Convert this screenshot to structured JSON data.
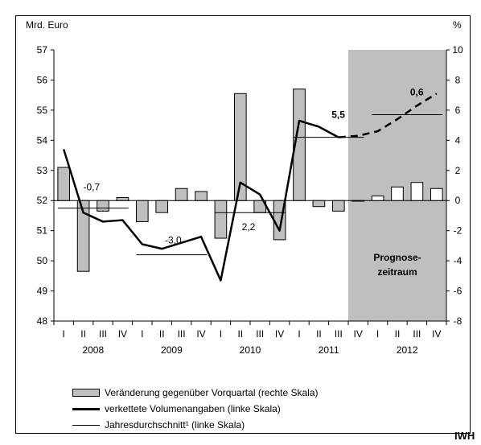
{
  "chart_data": {
    "type": "bar+line",
    "left_axis_unit": "Mrd. Euro",
    "right_axis_unit": "%",
    "left_ylim": [
      48,
      57
    ],
    "right_ylim": [
      -8,
      10
    ],
    "left_ticks": [
      "57",
      "56",
      "55",
      "54",
      "53",
      "52",
      "51",
      "50",
      "49",
      "48"
    ],
    "right_ticks": [
      "10",
      "8",
      "6",
      "4",
      "2",
      "0",
      "-2",
      "-4",
      "-6",
      "-8"
    ],
    "quarters": [
      "I",
      "II",
      "III",
      "IV",
      "I",
      "II",
      "III",
      "IV",
      "I",
      "II",
      "III",
      "IV",
      "I",
      "II",
      "III",
      "IV",
      "I",
      "II",
      "III",
      "IV"
    ],
    "years": [
      "2008",
      "2009",
      "2010",
      "2011",
      "2012"
    ],
    "bars": {
      "name": "Veränderung gegenüber Vorquartal (rechte Skala)",
      "values": [
        2.2,
        -4.7,
        -0.7,
        0.2,
        -1.4,
        -0.8,
        0.8,
        0.6,
        -2.5,
        7.1,
        -0.8,
        -2.6,
        7.4,
        -0.4,
        -0.7,
        0.0,
        0.3,
        0.9,
        1.2,
        0.8
      ],
      "forecast_start_index": 15
    },
    "line": {
      "name": "verkettete Volumenangaben (linke Skala)",
      "values": [
        53.7,
        51.6,
        51.3,
        51.35,
        50.55,
        50.4,
        50.6,
        50.8,
        49.35,
        52.6,
        52.2,
        51.0,
        54.65,
        54.45,
        54.1,
        54.15,
        54.3,
        54.7,
        55.15,
        55.55
      ],
      "forecast_start_index": 15
    },
    "annual_averages": {
      "name": "Jahresdurchschnitt¹ (linke Skala)",
      "values": [
        51.75,
        50.2,
        51.6,
        54.1,
        54.85
      ],
      "labels": [
        "-0,7",
        "-3,0",
        "2,2",
        "5,5",
        "0,6"
      ]
    },
    "forecast_label": [
      "Prognose-",
      "zeitraum"
    ],
    "colors": {
      "bar": "#bfbfbf",
      "forecast_shade": "#bfbfbf",
      "forecast_bar": "#ffffff",
      "line": "#000000"
    },
    "legend_position": "bottom-left"
  },
  "legend": {
    "bars": "Veränderung gegenüber Vorquartal (rechte Skala)",
    "line": "verkettete Volumenangaben (linke Skala)",
    "average": "Jahresdurchschnitt¹ (linke Skala)"
  },
  "source_label": "IWH"
}
